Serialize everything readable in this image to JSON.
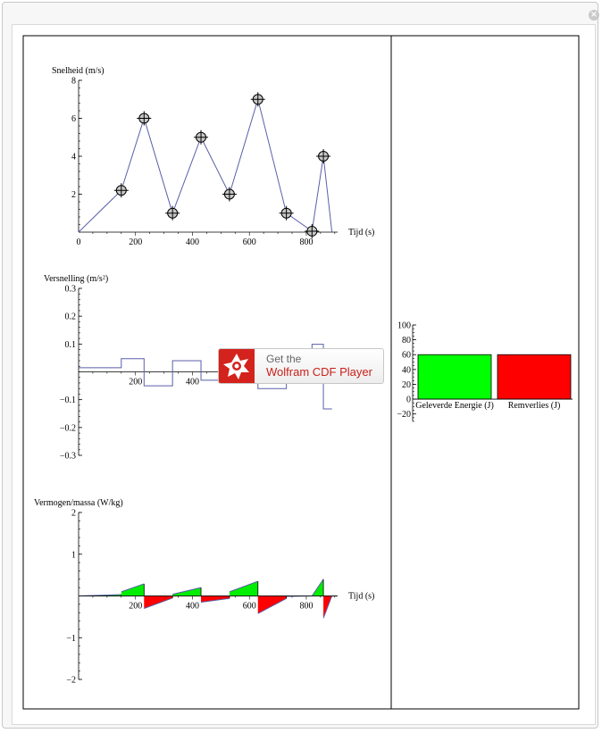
{
  "window": {
    "close_glyph": "×"
  },
  "badge": {
    "line1": "Get the",
    "line2": "Wolfram CDF Player"
  },
  "chart_data": [
    {
      "type": "line",
      "ylabel": "Snelheid (m/s)",
      "xlabel": "Tijd (s)",
      "xlim": [
        0,
        910
      ],
      "ylim": [
        0,
        8
      ],
      "x_ticks": [
        0,
        200,
        400,
        600,
        800
      ],
      "y_ticks": [
        2,
        4,
        6,
        8
      ],
      "series": [
        {
          "x": [
            0,
            150,
            230,
            330,
            430,
            530,
            630,
            730,
            820,
            860,
            890
          ],
          "y": [
            0,
            2.2,
            6,
            1,
            5,
            2,
            7,
            1,
            0.05,
            4,
            0
          ]
        }
      ],
      "markers": [
        {
          "x": 150,
          "y": 2.2
        },
        {
          "x": 230,
          "y": 6
        },
        {
          "x": 330,
          "y": 1
        },
        {
          "x": 430,
          "y": 5
        },
        {
          "x": 530,
          "y": 2
        },
        {
          "x": 630,
          "y": 7
        },
        {
          "x": 730,
          "y": 1
        },
        {
          "x": 820,
          "y": 0.05
        },
        {
          "x": 860,
          "y": 4
        }
      ],
      "line_color": "#5a5ea8"
    },
    {
      "type": "line",
      "ylabel": "Versnelling (m/s²)",
      "xlim": [
        0,
        910
      ],
      "ylim": [
        -0.3,
        0.3
      ],
      "x_ticks": [
        200,
        400
      ],
      "y_ticks": [
        -0.3,
        -0.2,
        -0.1,
        0.1,
        0.2,
        0.3
      ],
      "y_tick_labels": [
        "−0.3",
        "−0.2",
        "−0.1",
        "0.1",
        "0.2",
        "0.3"
      ],
      "steps": [
        {
          "x0": 0,
          "x1": 150,
          "y": 0.015
        },
        {
          "x0": 150,
          "x1": 230,
          "y": 0.0475
        },
        {
          "x0": 230,
          "x1": 330,
          "y": -0.05
        },
        {
          "x0": 330,
          "x1": 430,
          "y": 0.04
        },
        {
          "x0": 430,
          "x1": 530,
          "y": -0.03
        },
        {
          "x0": 530,
          "x1": 630,
          "y": 0.05
        },
        {
          "x0": 630,
          "x1": 730,
          "y": -0.06
        },
        {
          "x0": 730,
          "x1": 820,
          "y": -0.011
        },
        {
          "x0": 820,
          "x1": 860,
          "y": 0.099
        },
        {
          "x0": 860,
          "x1": 890,
          "y": -0.133
        }
      ],
      "line_color": "#5a5ea8"
    },
    {
      "type": "area",
      "ylabel": "Vermogen/massa (W/kg)",
      "xlabel": "Tijd (s)",
      "xlim": [
        0,
        910
      ],
      "ylim": [
        -2,
        2
      ],
      "x_ticks": [
        200,
        400,
        600,
        800
      ],
      "y_ticks": [
        -2,
        -1,
        1,
        2
      ],
      "y_tick_labels": [
        "−2",
        "−1",
        "1",
        "2"
      ],
      "segments": [
        {
          "x0": 0,
          "x1": 150,
          "y0": 0,
          "y1": 0.033
        },
        {
          "x0": 150,
          "x1": 230,
          "y0": 0.1,
          "y1": 0.29
        },
        {
          "x0": 230,
          "x1": 330,
          "y0": -0.3,
          "y1": -0.05
        },
        {
          "x0": 330,
          "x1": 430,
          "y0": 0.04,
          "y1": 0.2
        },
        {
          "x0": 430,
          "x1": 530,
          "y0": -0.15,
          "y1": -0.06
        },
        {
          "x0": 530,
          "x1": 630,
          "y0": 0.1,
          "y1": 0.35
        },
        {
          "x0": 630,
          "x1": 730,
          "y0": -0.42,
          "y1": -0.06
        },
        {
          "x0": 730,
          "x1": 820,
          "y0": -0.01,
          "y1": 0
        },
        {
          "x0": 820,
          "x1": 860,
          "y0": 0,
          "y1": 0.4
        },
        {
          "x0": 860,
          "x1": 890,
          "y0": -0.53,
          "y1": 0
        }
      ],
      "positive_color": "#00ee00",
      "negative_color": "#ff0000",
      "line_color": "#5a5ea8"
    },
    {
      "type": "bar",
      "categories": [
        "Geleverde Energie (J)",
        "Remverlies (J)"
      ],
      "values": [
        60,
        60
      ],
      "colors": [
        "#00ff00",
        "#ff0000"
      ],
      "ylim": [
        -30,
        100
      ],
      "y_ticks": [
        -20,
        0,
        20,
        40,
        60,
        80,
        100
      ],
      "y_tick_labels": [
        "−20",
        "0",
        "20",
        "40",
        "60",
        "80",
        "100"
      ]
    }
  ]
}
